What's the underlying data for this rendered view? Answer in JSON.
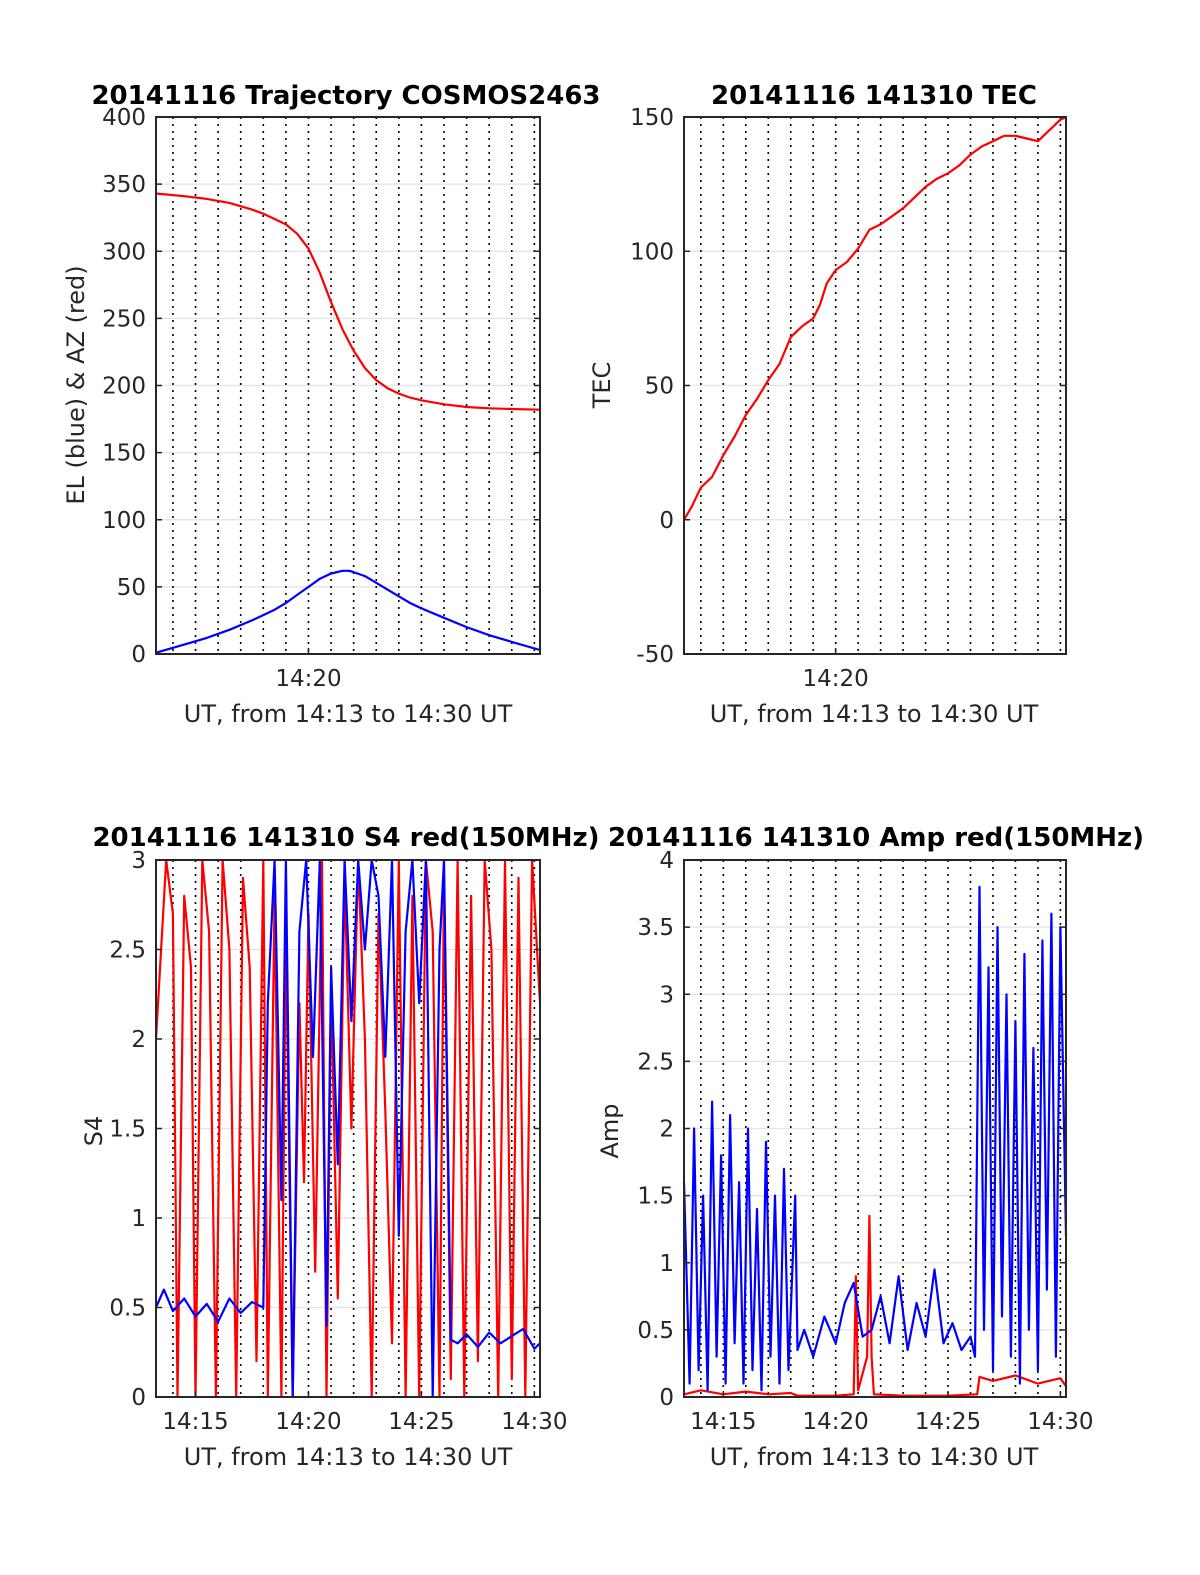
{
  "chart_data": [
    {
      "type": "line",
      "title": "20141116 Trajectory COSMOS2463",
      "xlabel": "UT, from 14:13 to 14:30 UT",
      "ylabel": "EL (blue) & AZ (red)",
      "xlim": [
        13.25,
        30.25
      ],
      "ylim": [
        0,
        400
      ],
      "xticks": [
        {
          "v": 20,
          "label": "14:20"
        }
      ],
      "yticks": [
        0,
        50,
        100,
        150,
        200,
        250,
        300,
        350,
        400
      ],
      "grid": true,
      "series": [
        {
          "color": "#ff0000",
          "x": [
            13.25,
            14.5,
            15.5,
            16.5,
            17.5,
            18.0,
            18.5,
            19.0,
            19.5,
            20.0,
            20.5,
            21.0,
            21.5,
            22.0,
            22.5,
            23.0,
            23.5,
            24.0,
            24.5,
            25.0,
            26.0,
            27.0,
            28.0,
            29.0,
            30.25
          ],
          "y": [
            343,
            341,
            339,
            336,
            331,
            328,
            324,
            320,
            313,
            302,
            284,
            262,
            242,
            226,
            213,
            204,
            198,
            194,
            191,
            189,
            186,
            184,
            183,
            182.5,
            182
          ]
        },
        {
          "color": "#0000ff",
          "x": [
            13.25,
            14.5,
            15.5,
            16.5,
            17.5,
            18.0,
            18.5,
            19.0,
            19.5,
            20.0,
            20.5,
            21.0,
            21.5,
            21.8,
            22.0,
            22.5,
            23.0,
            23.5,
            24.0,
            24.5,
            25.0,
            26.0,
            27.0,
            28.0,
            29.0,
            30.25
          ],
          "y": [
            1,
            7,
            12,
            18,
            25,
            29,
            33,
            38,
            44,
            50,
            56,
            60,
            62,
            62,
            61,
            58,
            53,
            48,
            43,
            38,
            34,
            27,
            20,
            14,
            9,
            3
          ]
        }
      ]
    },
    {
      "type": "line",
      "title": "20141116 141310 TEC",
      "xlabel": "UT, from 14:13 to 14:30 UT",
      "ylabel": "TEC",
      "xlim": [
        13.25,
        30.25
      ],
      "ylim": [
        -50,
        150
      ],
      "xticks": [
        {
          "v": 20,
          "label": "14:20"
        }
      ],
      "yticks": [
        -50,
        0,
        50,
        100,
        150
      ],
      "grid": true,
      "series": [
        {
          "color": "#ff0000",
          "x": [
            13.25,
            13.6,
            14.0,
            14.5,
            15.0,
            15.5,
            16.0,
            16.5,
            17.0,
            17.5,
            18.0,
            18.5,
            19.0,
            19.3,
            19.6,
            20.0,
            20.5,
            21.0,
            21.5,
            22.0,
            22.5,
            23.0,
            23.5,
            24.0,
            24.5,
            25.0,
            25.5,
            26.0,
            26.5,
            27.0,
            27.5,
            28.0,
            28.5,
            29.0,
            29.5,
            30.0,
            30.25
          ],
          "y": [
            0,
            5,
            12,
            16,
            24,
            31,
            39,
            45,
            52,
            58,
            68,
            72,
            75,
            80,
            88,
            93,
            96,
            101,
            108,
            110,
            113,
            116,
            120,
            124,
            127,
            129,
            132,
            136,
            139,
            141,
            143,
            143,
            142,
            141,
            145,
            149,
            150
          ]
        }
      ]
    },
    {
      "type": "line",
      "title": "20141116 141310 S4 red(150MHz)",
      "xlabel": "UT, from 14:13 to 14:30 UT",
      "ylabel": "S4",
      "xlim": [
        13.25,
        30.25
      ],
      "ylim": [
        0,
        3
      ],
      "xticks": [
        {
          "v": 15,
          "label": "14:15"
        },
        {
          "v": 20,
          "label": "14:20"
        },
        {
          "v": 25,
          "label": "14:25"
        },
        {
          "v": 30,
          "label": "14:30"
        }
      ],
      "yticks": [
        0,
        0.5,
        1,
        1.5,
        2,
        2.5,
        3
      ],
      "grid": true,
      "series": [
        {
          "color": "#ff0000",
          "x": [
            13.25,
            13.7,
            14.0,
            14.2,
            14.5,
            14.8,
            15.0,
            15.3,
            15.6,
            15.9,
            16.2,
            16.5,
            16.8,
            17.1,
            17.4,
            17.7,
            18.0,
            18.2,
            18.5,
            18.8,
            19.0,
            19.3,
            19.6,
            19.8,
            20.0,
            20.3,
            20.6,
            20.8,
            21.0,
            21.3,
            21.6,
            21.9,
            22.2,
            22.5,
            22.8,
            23.1,
            23.4,
            23.7,
            24.0,
            24.3,
            24.6,
            24.9,
            25.2,
            25.5,
            25.8,
            26.0,
            26.3,
            26.6,
            26.9,
            27.2,
            27.5,
            27.8,
            28.1,
            28.4,
            28.7,
            29.0,
            29.3,
            29.6,
            29.9,
            30.25
          ],
          "y": [
            2.0,
            3.0,
            2.7,
            0,
            2.8,
            2.4,
            0,
            3.0,
            2.6,
            0,
            3.0,
            2.5,
            0,
            2.9,
            2.4,
            0.2,
            3.0,
            0,
            2.8,
            0,
            2.6,
            0,
            2.2,
            1.2,
            2.7,
            0.7,
            3.0,
            0,
            2.3,
            0.55,
            2.9,
            1.5,
            3.0,
            2.0,
            0,
            2.7,
            1.6,
            0.3,
            3.0,
            0,
            2.8,
            0,
            3.0,
            2.6,
            0,
            2.9,
            0.1,
            3.0,
            0,
            2.8,
            0.2,
            3.0,
            2.5,
            0,
            3.0,
            0.1,
            2.9,
            0,
            3.0,
            2.2
          ]
        },
        {
          "color": "#0000ff",
          "x": [
            13.25,
            13.6,
            14.0,
            14.5,
            15.0,
            15.5,
            16.0,
            16.5,
            17.0,
            17.5,
            18.0,
            18.2,
            18.5,
            18.8,
            19.0,
            19.3,
            19.6,
            19.9,
            20.2,
            20.5,
            20.8,
            21.0,
            21.3,
            21.6,
            21.9,
            22.2,
            22.5,
            22.8,
            23.1,
            23.4,
            23.7,
            24.0,
            24.3,
            24.6,
            24.9,
            25.2,
            25.5,
            25.8,
            26.0,
            26.3,
            26.6,
            27.0,
            27.5,
            28.0,
            28.5,
            29.0,
            29.5,
            30.0,
            30.25
          ],
          "y": [
            0.5,
            0.6,
            0.48,
            0.55,
            0.45,
            0.52,
            0.42,
            0.55,
            0.47,
            0.53,
            0.5,
            2.2,
            3.0,
            1.1,
            3.0,
            0,
            2.6,
            3.0,
            1.9,
            3.0,
            0.4,
            2.4,
            1.3,
            3.0,
            2.1,
            3.0,
            2.5,
            3.0,
            2.8,
            1.9,
            3.0,
            0.9,
            2.6,
            3.0,
            2.2,
            3.0,
            0,
            2.5,
            3.0,
            0.32,
            0.3,
            0.35,
            0.28,
            0.36,
            0.3,
            0.34,
            0.38,
            0.27,
            0.3
          ]
        }
      ]
    },
    {
      "type": "line",
      "title": "20141116 141310 Amp red(150MHz)",
      "xlabel": "UT, from 14:13 to 14:30 UT",
      "ylabel": "Amp",
      "xlim": [
        13.25,
        30.25
      ],
      "ylim": [
        0,
        4
      ],
      "xticks": [
        {
          "v": 15,
          "label": "14:15"
        },
        {
          "v": 20,
          "label": "14:20"
        },
        {
          "v": 25,
          "label": "14:25"
        },
        {
          "v": 30,
          "label": "14:30"
        }
      ],
      "yticks": [
        0,
        0.5,
        1,
        1.5,
        2,
        2.5,
        3,
        3.5,
        4
      ],
      "grid": true,
      "series": [
        {
          "color": "#ff0000",
          "x": [
            13.25,
            14.0,
            15.0,
            16.0,
            17.0,
            18.0,
            18.3,
            20.0,
            20.8,
            20.9,
            21.0,
            21.4,
            21.5,
            21.6,
            21.7,
            23.0,
            25.0,
            26.3,
            26.4,
            27.0,
            28.0,
            29.0,
            30.0,
            30.25
          ],
          "y": [
            0.02,
            0.05,
            0.02,
            0.04,
            0.02,
            0.03,
            0.01,
            0.01,
            0.02,
            0.9,
            0.05,
            0.3,
            1.35,
            0.3,
            0.02,
            0.01,
            0.01,
            0.02,
            0.15,
            0.12,
            0.16,
            0.1,
            0.14,
            0.08
          ]
        },
        {
          "color": "#0000ff",
          "x": [
            13.25,
            13.5,
            13.7,
            13.9,
            14.1,
            14.3,
            14.5,
            14.7,
            14.9,
            15.1,
            15.3,
            15.5,
            15.7,
            15.9,
            16.1,
            16.3,
            16.5,
            16.7,
            16.9,
            17.1,
            17.3,
            17.5,
            17.7,
            17.9,
            18.2,
            18.3,
            18.6,
            19.0,
            19.5,
            20.0,
            20.4,
            20.8,
            21.2,
            21.6,
            22.0,
            22.4,
            22.8,
            23.2,
            23.6,
            24.0,
            24.4,
            24.8,
            25.2,
            25.6,
            26.0,
            26.2,
            26.4,
            26.6,
            26.8,
            27.0,
            27.2,
            27.4,
            27.6,
            27.8,
            28.0,
            28.2,
            28.4,
            28.6,
            28.8,
            29.0,
            29.2,
            29.4,
            29.6,
            29.8,
            30.0,
            30.25
          ],
          "y": [
            1.6,
            0.1,
            2.0,
            0.2,
            1.5,
            0.05,
            2.2,
            0.3,
            1.8,
            0.1,
            2.1,
            0.4,
            1.6,
            0.1,
            2.0,
            0.2,
            1.4,
            0.05,
            1.9,
            0.3,
            1.5,
            0.1,
            1.7,
            0.2,
            1.5,
            0.35,
            0.5,
            0.3,
            0.6,
            0.4,
            0.7,
            0.85,
            0.45,
            0.5,
            0.75,
            0.4,
            0.9,
            0.35,
            0.7,
            0.45,
            0.95,
            0.4,
            0.55,
            0.35,
            0.45,
            0.3,
            3.8,
            0.5,
            3.2,
            0.2,
            3.5,
            0.6,
            3.0,
            0.3,
            2.8,
            0.1,
            3.3,
            0.5,
            2.6,
            0.2,
            3.4,
            0.8,
            3.6,
            0.3,
            3.5,
            1.2
          ]
        }
      ]
    }
  ]
}
